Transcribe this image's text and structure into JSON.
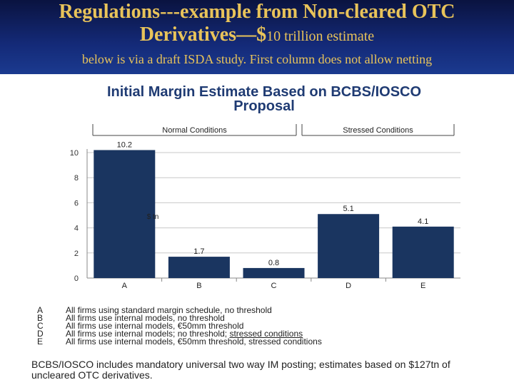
{
  "header": {
    "title_line1": "Regulations---example from Non-cleared OTC",
    "title_line2": "Derivatives—$",
    "title_line2_small": "10 trillion estimate",
    "subtitle": "below is via a draft ISDA study. First column does not allow netting"
  },
  "chart_data": {
    "type": "bar",
    "title_line1": "Initial Margin Estimate Based on BCBS/IOSCO",
    "title_line2": "Proposal",
    "categories": [
      "A",
      "B",
      "C",
      "D",
      "E"
    ],
    "values": [
      10.2,
      1.7,
      0.8,
      5.1,
      4.1
    ],
    "value_labels": [
      "10.2",
      "1.7",
      "0.8",
      "5.1",
      "4.1"
    ],
    "ylim": [
      0,
      10
    ],
    "yticks": [
      "0",
      "2",
      "4",
      "6",
      "8",
      "10"
    ],
    "ylabel": "$ tn",
    "bar_color": "#1a3560",
    "groups": [
      {
        "label": "Normal Conditions",
        "categories": [
          "A",
          "B",
          "C"
        ]
      },
      {
        "label": "Stressed Conditions",
        "categories": [
          "D",
          "E"
        ]
      }
    ]
  },
  "legend": [
    {
      "key": "A",
      "text": "All firms using standard margin schedule, no threshold"
    },
    {
      "key": "B",
      "text": "All firms use internal models, no threshold"
    },
    {
      "key": "C",
      "text": "All firms use internal models, €50mm threshold"
    },
    {
      "key": "D",
      "text": "All firms use internal models; no threshold; ",
      "text_underlined": "stressed conditions"
    },
    {
      "key": "E",
      "text": "All firms use internal models, €50mm threshold, stressed conditions"
    }
  ],
  "footnote": "BCBS/IOSCO includes mandatory universal two way IM posting; estimates based on $127tn of uncleared OTC derivatives."
}
